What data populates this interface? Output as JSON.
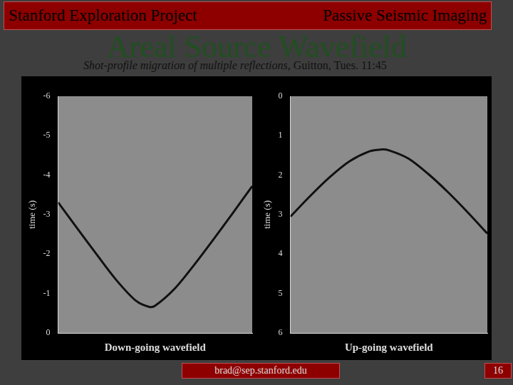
{
  "header": {
    "left": "Stanford Exploration Project",
    "right": "Passive Seismic Imaging"
  },
  "title": "Areal Source Wavefield",
  "subtitle": {
    "italic": "Shot-profile migration of multiple reflections,",
    "plain": "Guitton, Tues. 11:45"
  },
  "chart_data": [
    {
      "type": "line",
      "x_label": "Down-going wavefield",
      "y_label": "time (s)",
      "x": [
        0,
        10,
        20,
        30,
        40,
        47,
        50,
        60,
        70,
        80,
        90,
        100
      ],
      "values": [
        -3.31,
        -2.64,
        -1.98,
        -1.34,
        -0.82,
        -0.66,
        -0.69,
        -1.12,
        -1.72,
        -2.37,
        -3.04,
        -3.72
      ],
      "color": "#111111",
      "xlim": [
        0,
        100
      ],
      "ylim": [
        0,
        -6
      ],
      "yticks": [
        0,
        -1,
        -2,
        -3,
        -4,
        -5,
        -6
      ],
      "tick_labels": "y",
      "grid": false
    },
    {
      "type": "line",
      "x_label": "Up-going wavefield",
      "y_label": "time (s)",
      "x": [
        0,
        10,
        20,
        30,
        40,
        46,
        50,
        60,
        70,
        80,
        90,
        100
      ],
      "values": [
        3.05,
        2.53,
        2.05,
        1.65,
        1.4,
        1.35,
        1.37,
        1.58,
        1.97,
        2.43,
        2.94,
        3.48
      ],
      "color": "#111111",
      "xlim": [
        0,
        100
      ],
      "ylim": [
        6,
        0
      ],
      "yticks": [
        0,
        1,
        2,
        3,
        4,
        5,
        6
      ],
      "tick_labels": "y",
      "grid": false
    }
  ],
  "footer": {
    "email": "brad@sep.stanford.edu",
    "page": 16
  }
}
